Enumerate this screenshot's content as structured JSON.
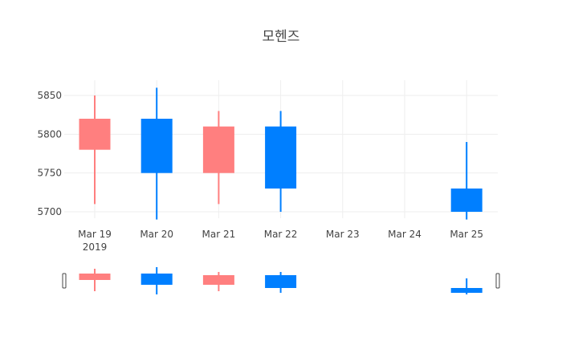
{
  "chart_data": {
    "type": "candlestick",
    "title": "모헨즈",
    "xlabel": "",
    "ylabel": "",
    "categories": [
      "Mar 19",
      "Mar 20",
      "Mar 21",
      "Mar 22",
      "Mar 23",
      "Mar 24",
      "Mar 25"
    ],
    "x_year_label": "2019",
    "y_ticks": [
      5700,
      5750,
      5800,
      5850
    ],
    "ylim": [
      5680,
      5870
    ],
    "grid": true,
    "rangeslider": true,
    "colors": {
      "increasing": "#FF7F7F",
      "decreasing": "#007FFF"
    },
    "series": [
      {
        "date": "Mar 19",
        "open": 5780,
        "high": 5850,
        "low": 5710,
        "close": 5820
      },
      {
        "date": "Mar 20",
        "open": 5820,
        "high": 5860,
        "low": 5690,
        "close": 5750
      },
      {
        "date": "Mar 21",
        "open": 5750,
        "high": 5830,
        "low": 5710,
        "close": 5810
      },
      {
        "date": "Mar 22",
        "open": 5810,
        "high": 5830,
        "low": 5700,
        "close": 5730
      },
      {
        "date": "Mar 25",
        "open": 5730,
        "high": 5790,
        "low": 5690,
        "close": 5700
      }
    ]
  }
}
